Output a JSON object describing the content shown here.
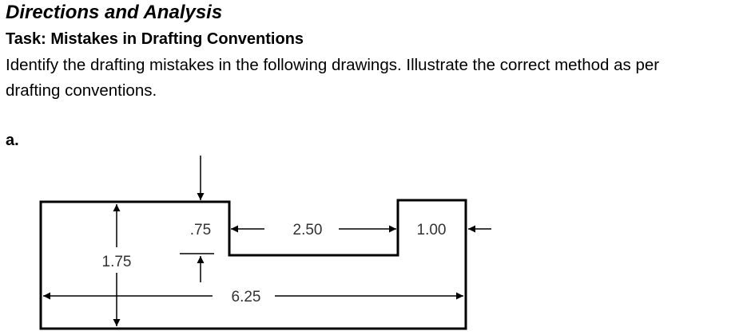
{
  "document": {
    "title": "Directions and Analysis",
    "task_heading": "Task: Mistakes in Drafting Conventions",
    "instructions_line1": "Identify the drafting mistakes in the following drawings. Illustrate the correct method as per",
    "instructions_line2": "drafting conventions.",
    "item_label": "a."
  },
  "drawing": {
    "dimensions": {
      "overall_height": "1.75",
      "notch_depth": ".75",
      "notch_width": "2.50",
      "right_step_width": "1.00",
      "overall_width": "6.25"
    }
  }
}
